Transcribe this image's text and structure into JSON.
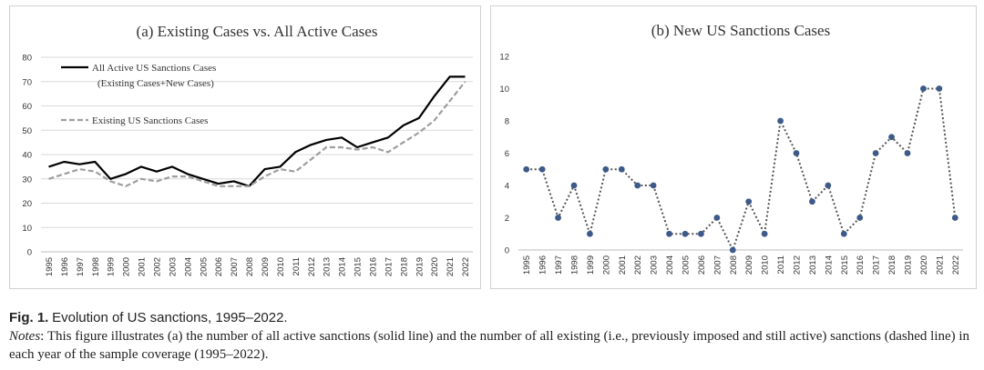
{
  "figure": {
    "label": "Fig. 1.",
    "title": "Evolution of US sanctions, 1995–2022.",
    "notes_label": "Notes",
    "notes_text": ": This figure illustrates (a) the number of all active sanctions (solid line) and the number of all existing (i.e., previously imposed and still active) sanctions (dashed line) in each year of the sample coverage (1995–2022)."
  },
  "chart_data": [
    {
      "type": "line",
      "title": "(a) Existing Cases vs. All Active Cases",
      "xlabel": "",
      "ylabel": "",
      "ylim": [
        0,
        80
      ],
      "yticks": [
        0,
        10,
        20,
        30,
        40,
        50,
        60,
        70,
        80
      ],
      "grid": true,
      "legend": "top-left",
      "x": [
        "1995",
        "1996",
        "1997",
        "1998",
        "1999",
        "2000",
        "2001",
        "2002",
        "2003",
        "2004",
        "2005",
        "2006",
        "2007",
        "2008",
        "2009",
        "2010",
        "2011",
        "2012",
        "2013",
        "2014",
        "2015",
        "2016",
        "2017",
        "2018",
        "2019",
        "2020",
        "2021",
        "2022"
      ],
      "series": [
        {
          "name": "All Active US Sanctions Cases",
          "name_line2": "(Existing Cases+New Cases)",
          "style": "solid",
          "color": "#000000",
          "values": [
            35,
            37,
            36,
            37,
            30,
            32,
            35,
            33,
            35,
            32,
            30,
            28,
            29,
            27,
            34,
            35,
            41,
            44,
            46,
            47,
            43,
            45,
            47,
            52,
            55,
            64,
            72,
            72
          ]
        },
        {
          "name": "Existing US Sanctions Cases",
          "style": "dashed",
          "color": "#9e9e9e",
          "values": [
            30,
            32,
            34,
            33,
            29,
            27,
            30,
            29,
            31,
            31,
            29,
            27,
            27,
            27,
            31,
            34,
            33,
            38,
            43,
            43,
            42,
            43,
            41,
            45,
            49,
            54,
            62,
            70
          ]
        }
      ]
    },
    {
      "type": "line",
      "title": "(b) New US Sanctions Cases",
      "xlabel": "",
      "ylabel": "",
      "ylim": [
        0,
        12
      ],
      "yticks": [
        0,
        2,
        4,
        6,
        8,
        10,
        12
      ],
      "grid": false,
      "x": [
        "1995",
        "1996",
        "1997",
        "1998",
        "1999",
        "2000",
        "2001",
        "2002",
        "2003",
        "2004",
        "2005",
        "2006",
        "2007",
        "2008",
        "2009",
        "2010",
        "2011",
        "2012",
        "2013",
        "2014",
        "2015",
        "2016",
        "2017",
        "2018",
        "2019",
        "2020",
        "2021",
        "2022"
      ],
      "series": [
        {
          "name": "",
          "style": "dotted-with-markers",
          "color": "#555555",
          "marker_color": "#3d5a8a",
          "values": [
            5,
            5,
            2,
            4,
            1,
            5,
            5,
            4,
            4,
            1,
            1,
            1,
            2,
            0,
            3,
            1,
            8,
            6,
            3,
            4,
            1,
            2,
            6,
            7,
            6,
            10,
            10,
            2
          ]
        }
      ]
    }
  ]
}
